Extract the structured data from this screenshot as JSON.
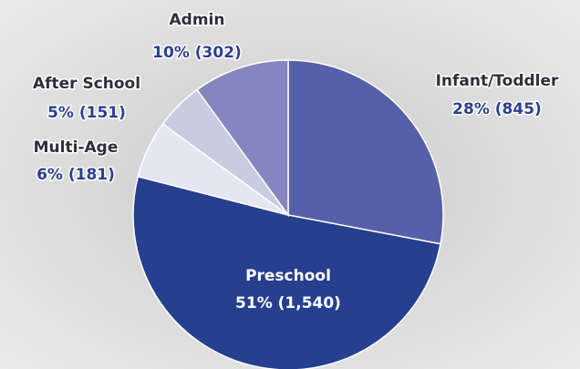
{
  "chart_data": {
    "type": "pie",
    "categories": [
      "Infant/Toddler",
      "Preschool",
      "Multi-Age",
      "After School",
      "Admin"
    ],
    "values": [
      845,
      1540,
      181,
      151,
      302
    ],
    "value_labels": [
      "28% (845)",
      "51% (1,540)",
      "6% (181)",
      "5% (151)",
      "10% (302)"
    ],
    "colors": [
      "#5660a8",
      "#263f8e",
      "#e4e6f2",
      "#c9cbe1",
      "#8585bf"
    ]
  }
}
